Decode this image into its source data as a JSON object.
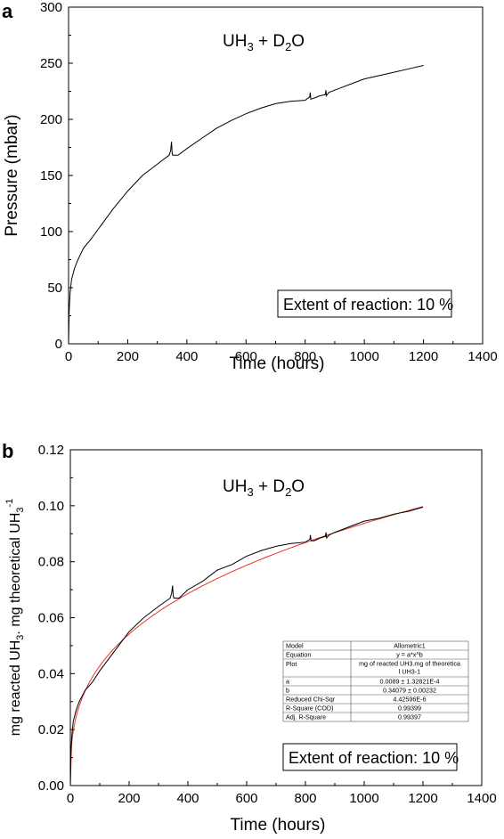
{
  "colors": {
    "data_line": "#000000",
    "fit_line": "#e8332a",
    "frame": "#000000"
  },
  "chart_data": [
    {
      "type": "line",
      "panel": "a",
      "annotation_main": "UH",
      "annotation_sub1": "3",
      "annotation_mid": " + D",
      "annotation_sub2": "2",
      "annotation_end": "O",
      "xlabel": "Time (hours)",
      "ylabel": "Pressure (mbar)",
      "xlim": [
        0,
        1400
      ],
      "ylim": [
        0,
        300
      ],
      "xticks": [
        0,
        200,
        400,
        600,
        800,
        1000,
        1200,
        1400
      ],
      "yticks": [
        0,
        50,
        100,
        150,
        200,
        250,
        300
      ],
      "extent_text": "Extent of reaction: 10 %",
      "series": [
        {
          "x": [
            0,
            2,
            5,
            10,
            20,
            30,
            50,
            75,
            100,
            150,
            200,
            250,
            300,
            340,
            345,
            348,
            350,
            352,
            355,
            370,
            400,
            450,
            500,
            550,
            600,
            650,
            700,
            750,
            800,
            815,
            817,
            819,
            830,
            850,
            868,
            870,
            872,
            880,
            900,
            950,
            1000,
            1050,
            1100,
            1150,
            1200
          ],
          "y": [
            0,
            30,
            45,
            57,
            67,
            74,
            85,
            93,
            102,
            120,
            136,
            150,
            160,
            168,
            172,
            180,
            170,
            168,
            168,
            168,
            174,
            183,
            192,
            199,
            205,
            210,
            214,
            216,
            217,
            220,
            224,
            218,
            219,
            221,
            222,
            226,
            221,
            224,
            226,
            231,
            236,
            239,
            242,
            245,
            248
          ]
        }
      ]
    },
    {
      "type": "line",
      "panel": "b",
      "annotation_main": "UH",
      "annotation_sub1": "3",
      "annotation_mid": " + D",
      "annotation_sub2": "2",
      "annotation_end": "O",
      "xlabel": "Time (hours)",
      "ylabel_part1": "mg reacted UH",
      "ylabel_sub1": "3",
      "ylabel_part2": ". mg theoretical UH",
      "ylabel_sub2": "3",
      "ylabel_sup": "-1",
      "xlim": [
        0,
        1400
      ],
      "ylim": [
        0,
        0.12
      ],
      "xticks": [
        0,
        200,
        400,
        600,
        800,
        1000,
        1200,
        1400
      ],
      "yticks": [
        "0.00",
        "0.02",
        "0.04",
        "0.06",
        "0.08",
        "0.10",
        "0.12"
      ],
      "extent_text": "Extent of reaction: 10 %",
      "series": [
        {
          "x": [
            0,
            2,
            5,
            10,
            20,
            30,
            50,
            75,
            100,
            150,
            200,
            250,
            300,
            340,
            345,
            348,
            350,
            352,
            355,
            370,
            400,
            450,
            500,
            550,
            600,
            650,
            700,
            750,
            800,
            815,
            817,
            819,
            830,
            850,
            868,
            870,
            872,
            880,
            900,
            950,
            1000,
            1050,
            1100,
            1150,
            1200
          ],
          "y": [
            0,
            0.012,
            0.018,
            0.023,
            0.027,
            0.03,
            0.034,
            0.037,
            0.041,
            0.048,
            0.055,
            0.06,
            0.064,
            0.067,
            0.069,
            0.0715,
            0.068,
            0.067,
            0.067,
            0.067,
            0.07,
            0.073,
            0.077,
            0.079,
            0.082,
            0.084,
            0.0855,
            0.0865,
            0.087,
            0.088,
            0.0895,
            0.0875,
            0.0875,
            0.0885,
            0.089,
            0.0905,
            0.0885,
            0.0895,
            0.0905,
            0.0925,
            0.0945,
            0.0955,
            0.097,
            0.098,
            0.0995
          ]
        },
        {
          "fit": true,
          "equation": "y = a*x^b",
          "a": 0.0089,
          "b": 0.34079
        }
      ],
      "fit_table": [
        [
          "Model",
          "Allometric1"
        ],
        [
          "Equation",
          "y = a*x^b"
        ],
        [
          "Plot",
          "mg of reacted UH3.mg of theoretica",
          "l UH3-1"
        ],
        [
          "a",
          "0.0089 ± 1.32821E-4"
        ],
        [
          "b",
          "0.34079 ± 0.00232"
        ],
        [
          "Reduced Chi-Sqr",
          "4.42596E-6"
        ],
        [
          "R-Square (COD)",
          "0.99399"
        ],
        [
          "Adj. R-Square",
          "0.99397"
        ]
      ]
    }
  ]
}
